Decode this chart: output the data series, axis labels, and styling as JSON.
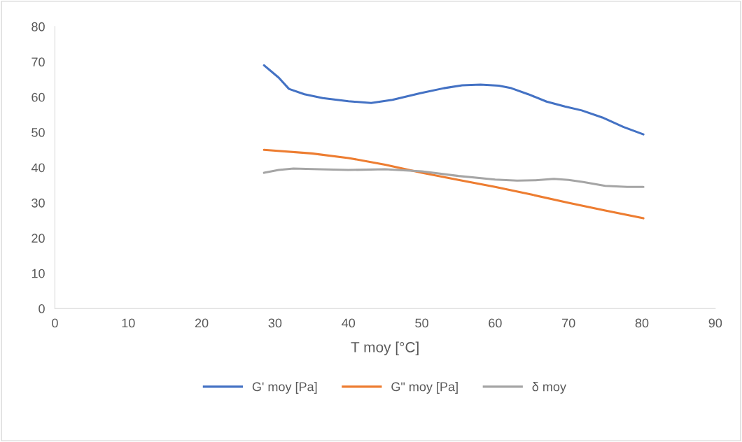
{
  "chart_data": {
    "type": "line",
    "xlabel": "T moy [°C]",
    "xlim": [
      0,
      90
    ],
    "xticks": [
      0,
      10,
      20,
      30,
      40,
      50,
      60,
      70,
      80,
      90
    ],
    "ylim": [
      0,
      80
    ],
    "yticks": [
      0,
      10,
      20,
      30,
      40,
      50,
      60,
      70,
      80
    ],
    "grid": false,
    "legend": "bottom",
    "marker": "none",
    "line_style": "solid",
    "series": [
      {
        "name": "G' moy [Pa]",
        "color": "#4472c4",
        "x": [
          28.5,
          30.5,
          31.9,
          34,
          36.5,
          40,
          43.1,
          46,
          49.8,
          53,
          55.5,
          58,
          60.5,
          62.2,
          64.5,
          67,
          69.5,
          71.8,
          74.6,
          77.5,
          80.2
        ],
        "values": [
          69,
          65.5,
          62.3,
          60.8,
          59.7,
          58.8,
          58.3,
          59.2,
          61.1,
          62.5,
          63.3,
          63.5,
          63.2,
          62.5,
          60.8,
          58.7,
          57.3,
          56.2,
          54.2,
          51.5,
          49.4
        ]
      },
      {
        "name": "G\" moy [Pa]",
        "color": "#ed7d31",
        "x": [
          28.5,
          35,
          40,
          45,
          50,
          55,
          60,
          65,
          70,
          75,
          80.2
        ],
        "values": [
          45,
          44,
          42.7,
          40.8,
          38.5,
          36.5,
          34.5,
          32.3,
          30,
          27.8,
          25.6
        ]
      },
      {
        "name": "δ moy",
        "color": "#a5a5a5",
        "x": [
          28.5,
          30.5,
          32.5,
          36,
          40,
          45,
          50,
          55,
          60,
          63,
          65.5,
          68,
          70,
          72,
          75,
          78,
          80.2
        ],
        "values": [
          38.5,
          39.3,
          39.7,
          39.5,
          39.3,
          39.5,
          38.9,
          37.6,
          36.6,
          36.3,
          36.4,
          36.8,
          36.5,
          35.9,
          34.8,
          34.5,
          34.5
        ]
      }
    ]
  }
}
